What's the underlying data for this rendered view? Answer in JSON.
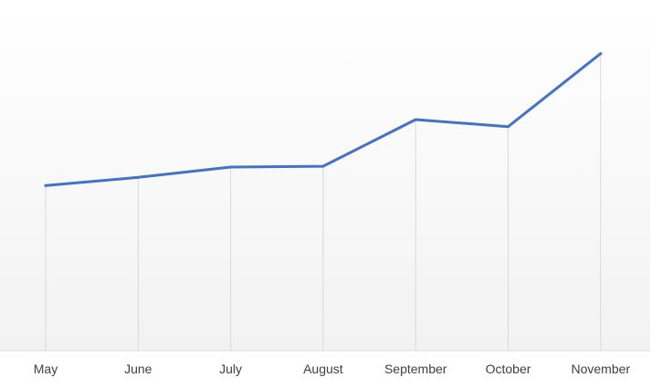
{
  "chart_data": {
    "type": "line",
    "title": "",
    "xlabel": "",
    "ylabel": "",
    "categories": [
      "May",
      "June",
      "July",
      "August",
      "September",
      "October",
      "November"
    ],
    "series": [
      {
        "values": [
          40,
          42,
          44.5,
          44.7,
          56,
          54.3,
          72
        ]
      }
    ],
    "ylim": [
      0,
      85
    ],
    "grid": "vertical drop lines at each category",
    "legend": "none",
    "colors": {
      "line": "#4472C4",
      "drop_line": "#d9d9d9",
      "axis": "#d9d9d9",
      "tick_text": "#404040",
      "background_bottom": "#f2f2f2",
      "background_top": "#ffffff"
    }
  }
}
